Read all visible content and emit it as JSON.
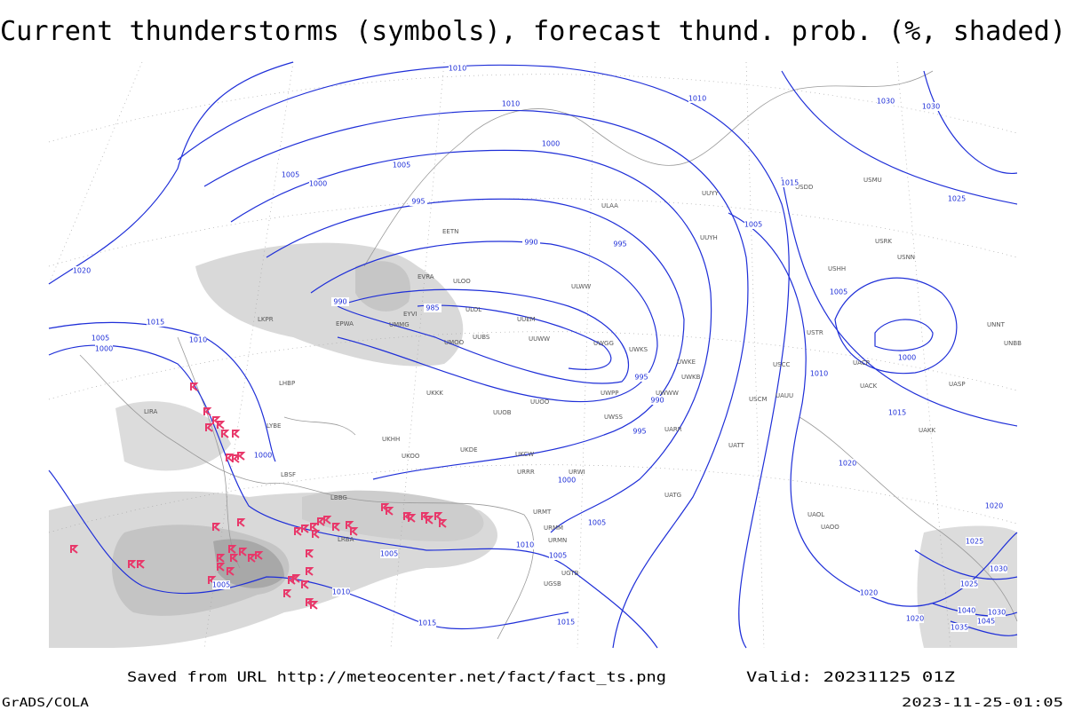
{
  "title": "Current thunderstorms (symbols), forecast thund. prob. (%, shaded)",
  "footer": {
    "source": "Saved from URL http://meteocenter.net/fact/fact_ts.png",
    "valid": "Valid: 20231125 01Z",
    "software": "GrADS/COLA",
    "timestamp": "2023-11-25-01:05"
  },
  "isobar_labels": [
    "1010",
    "1010",
    "1010",
    "1030",
    "1030",
    "1000",
    "1005",
    "1005",
    "1000",
    "995",
    "1015",
    "1025",
    "990",
    "995",
    "1005",
    "1020",
    "990",
    "985",
    "1005",
    "1015",
    "1005",
    "1000",
    "1010",
    "1000",
    "1010",
    "995",
    "990",
    "1015",
    "995",
    "1000",
    "1020",
    "1000",
    "1005",
    "1020",
    "1025",
    "1030",
    "1005",
    "1010",
    "1005",
    "1005",
    "1010",
    "1020",
    "1025",
    "1015",
    "1015",
    "1040",
    "1030",
    "1045",
    "1035",
    "1020"
  ],
  "stations": [
    "ULOO",
    "ULOL",
    "UUEM",
    "UUWW",
    "UMMG",
    "UMOO",
    "UUBS",
    "UUOB",
    "UUOO",
    "UKKK",
    "UKHH",
    "UKOO",
    "UKDE",
    "UKCW",
    "URRR",
    "URWI",
    "URMT",
    "URMM",
    "URMN",
    "UGTB",
    "UGSB",
    "UUYY",
    "UUYH",
    "ULAA",
    "ULWW",
    "UWGG",
    "UWKS",
    "UWKE",
    "UWKB",
    "UWWW",
    "UWPP",
    "UWSS",
    "UARR",
    "UATT",
    "USCC",
    "USCM",
    "UAUU",
    "UACK",
    "UACP",
    "UAKK",
    "UASP",
    "UAOL",
    "UAOO",
    "UATG",
    "UNNT",
    "UNBB",
    "USTR",
    "USHH",
    "USRK",
    "USNN",
    "USDD",
    "USMU",
    "LIRA",
    "LKPR",
    "LHBP",
    "LYBE",
    "LBSF",
    "LBBG",
    "LRBA",
    "EETN",
    "EVRA",
    "EYVI",
    "EPWA"
  ]
}
